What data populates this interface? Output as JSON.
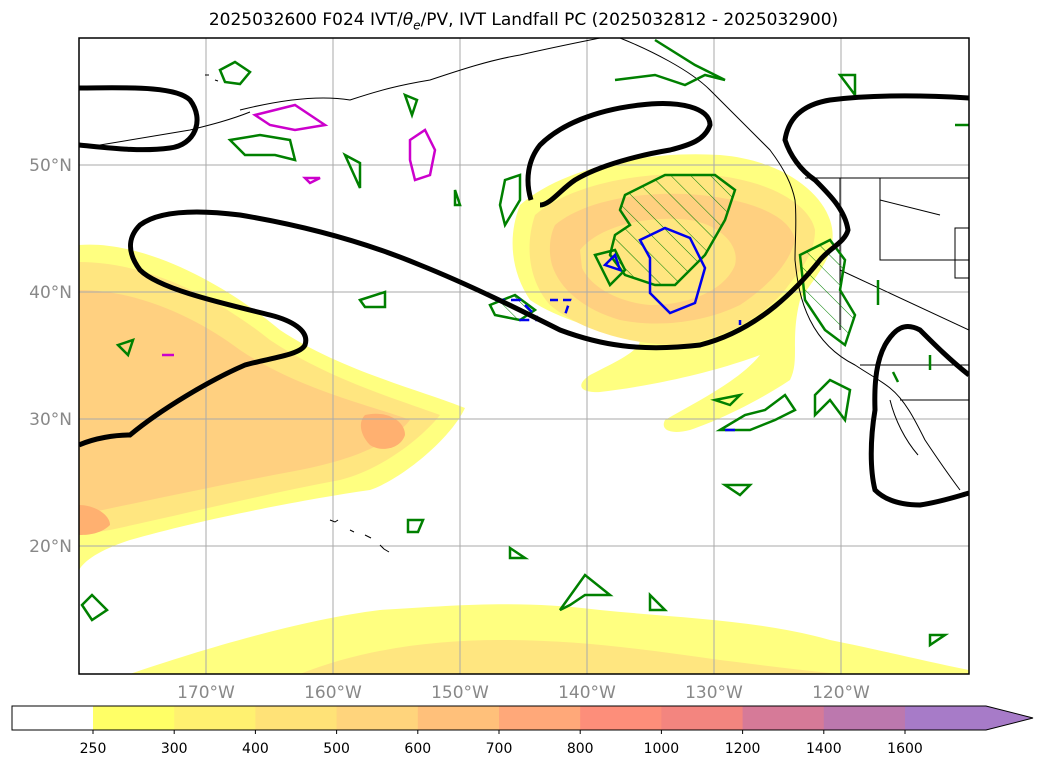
{
  "title": {
    "prefix": "2025032600 F024 IVT/",
    "theta_symbol": "θ",
    "theta_sub": "e",
    "suffix": "/PV, IVT Landfall PC (2025032812 - 2025032900)"
  },
  "map": {
    "lat_labels": [
      "50°N",
      "40°N",
      "30°N",
      "20°N"
    ],
    "lon_labels": [
      "170°W",
      "160°W",
      "150°W",
      "140°W",
      "130°W",
      "120°W"
    ],
    "grid": true
  },
  "colorbar": {
    "ticks": [
      "250",
      "300",
      "400",
      "500",
      "600",
      "700",
      "800",
      "1000",
      "1200",
      "1400",
      "1600"
    ],
    "colors": [
      "#ffff66",
      "#fff170",
      "#ffe277",
      "#ffd47c",
      "#ffc07a",
      "#ffa879",
      "#fd8e7a",
      "#f3857f",
      "#d67a98",
      "#bc78ae",
      "#a77bc8"
    ],
    "extend": "max"
  },
  "colors": {
    "ivt_light": "#ffff80",
    "ivt_mid": "#ffe680",
    "ivt_dark": "#ffd080",
    "ivt_peak": "#ffb070",
    "theta_contour": "#000000",
    "pv_green": "#008000",
    "pv_blue": "#0000ee",
    "pv_magenta": "#cc00cc",
    "coast": "#000000",
    "grid": "#aaaaaa"
  }
}
